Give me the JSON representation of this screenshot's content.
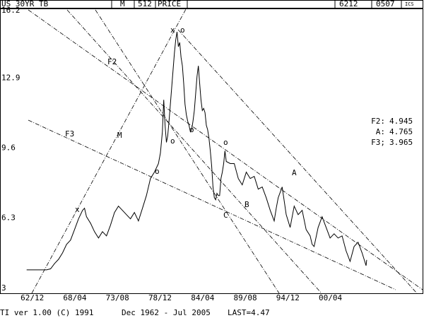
{
  "header": {
    "symbol": "US 30YR TB",
    "period": "M",
    "count": 512,
    "field": "PRICE",
    "start": "6212",
    "end": "0507",
    "logo": "ICS"
  },
  "chart_data": {
    "type": "line",
    "color": "#000000",
    "x": [
      "62/12",
      "63/06",
      "63/12",
      "64/06",
      "64/12",
      "65/06",
      "65/12",
      "66/06",
      "66/12",
      "67/06",
      "67/12",
      "68/06",
      "68/12",
      "69/06",
      "69/12",
      "70/03",
      "70/06",
      "70/12",
      "71/06",
      "71/12",
      "72/06",
      "72/12",
      "73/06",
      "73/12",
      "74/06",
      "74/12",
      "75/06",
      "75/12",
      "76/06",
      "76/12",
      "77/06",
      "77/12",
      "78/06",
      "78/12",
      "79/06",
      "79/09",
      "79/12",
      "80/02",
      "80/04",
      "80/06",
      "80/08",
      "80/10",
      "80/12",
      "81/02",
      "81/04",
      "81/06",
      "81/08",
      "81/10",
      "81/12",
      "82/02",
      "82/04",
      "82/06",
      "82/08",
      "82/10",
      "82/12",
      "83/02",
      "83/04",
      "83/06",
      "83/08",
      "83/10",
      "83/12",
      "84/02",
      "84/04",
      "84/06",
      "84/08",
      "84/10",
      "84/12",
      "85/02",
      "85/04",
      "85/06",
      "85/08",
      "85/10",
      "85/12",
      "86/02",
      "86/04",
      "86/06",
      "86/08",
      "86/10",
      "86/12",
      "87/02",
      "87/04",
      "87/06",
      "87/08",
      "87/10",
      "87/12",
      "88/06",
      "88/12",
      "89/06",
      "89/12",
      "90/06",
      "90/12",
      "91/06",
      "91/12",
      "92/06",
      "92/12",
      "93/06",
      "93/12",
      "94/03",
      "94/06",
      "94/12",
      "95/06",
      "95/12",
      "96/06",
      "96/12",
      "97/06",
      "97/12",
      "98/06",
      "98/09",
      "98/12",
      "99/06",
      "99/12",
      "00/06",
      "00/12",
      "01/06",
      "01/12",
      "02/06",
      "02/12",
      "03/06",
      "03/12",
      "04/06",
      "04/12",
      "05/06",
      "05/07"
    ],
    "values": [
      4.0,
      4.0,
      4.0,
      4.0,
      4.0,
      4.0,
      4.05,
      4.3,
      4.5,
      4.8,
      5.2,
      5.4,
      5.9,
      6.4,
      6.8,
      6.9,
      6.5,
      6.2,
      5.8,
      5.5,
      5.8,
      5.6,
      6.1,
      6.7,
      7.0,
      6.8,
      6.6,
      6.4,
      6.7,
      6.3,
      6.9,
      7.5,
      8.3,
      8.6,
      9.0,
      9.5,
      10.5,
      12.0,
      10.8,
      10.0,
      10.3,
      11.0,
      11.8,
      12.6,
      13.4,
      14.2,
      14.8,
      15.2,
      14.5,
      14.7,
      14.0,
      13.6,
      12.8,
      11.8,
      11.3,
      11.0,
      10.8,
      10.5,
      10.6,
      11.0,
      11.5,
      12.3,
      13.1,
      13.6,
      12.8,
      12.0,
      11.5,
      11.6,
      11.4,
      10.8,
      10.6,
      10.2,
      9.6,
      8.9,
      7.9,
      7.4,
      7.3,
      7.6,
      7.5,
      7.5,
      8.3,
      8.6,
      9.0,
      9.6,
      9.1,
      9.0,
      9.0,
      8.3,
      8.0,
      8.6,
      8.3,
      8.4,
      7.8,
      7.9,
      7.4,
      6.8,
      6.3,
      6.9,
      7.4,
      7.9,
      6.6,
      6.0,
      7.0,
      6.6,
      6.8,
      5.9,
      5.6,
      5.2,
      5.1,
      6.0,
      6.5,
      6.0,
      5.5,
      5.7,
      5.5,
      5.6,
      4.9,
      4.4,
      5.1,
      5.3,
      4.8,
      4.2,
      4.47
    ],
    "xlim": [
      "59/08",
      "12/08"
    ],
    "xticks": [
      "62/12",
      "68/04",
      "73/08",
      "78/12",
      "84/04",
      "89/08",
      "94/12",
      "00/04"
    ],
    "ylim": [
      2.9,
      16.3
    ],
    "yticks": [
      16.2,
      12.9,
      9.6,
      6.3,
      3
    ],
    "annotations": [
      "F2",
      "F3",
      "M",
      "A",
      "B",
      "C",
      "x",
      "x",
      "o",
      "o",
      "o",
      "o",
      "o"
    ],
    "levels": [
      {
        "label": "F2:",
        "value": 4.945
      },
      {
        "label": "A:",
        "value": 4.765
      },
      {
        "label": "F3;",
        "value": 3.965
      }
    ]
  },
  "footer": {
    "version": "TI ver 1.00 (C) 1991",
    "range": "Dec 1962 - Jul 2005",
    "last": "LAST=4.47"
  }
}
